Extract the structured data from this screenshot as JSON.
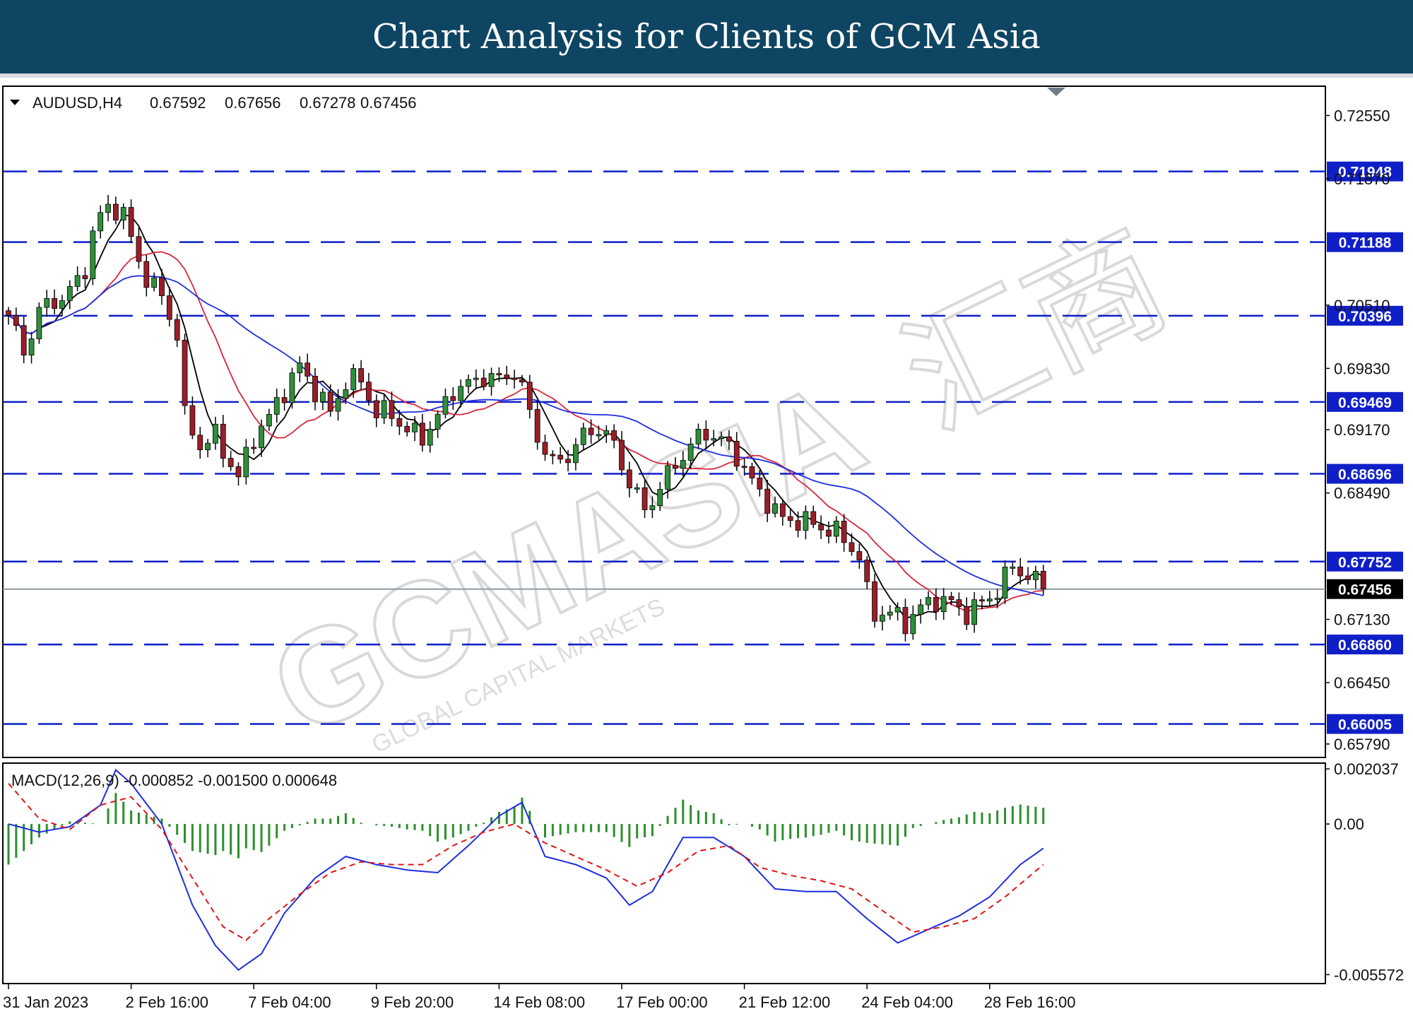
{
  "header": {
    "title": "Chart Analysis for Clients of GCM Asia"
  },
  "watermark": {
    "logo_text": "GCMASIA",
    "sub_text": "GLOBAL CAPITAL MARKETS",
    "logo_cn": "汇商"
  },
  "colors": {
    "level": "#0f1fc8",
    "bull": "#2f8f3a",
    "bear": "#9a1e28",
    "ma_fast": "#000000",
    "ma_mid": "#d9273c",
    "ma_slow": "#1e2ee0",
    "macd": "#1e2ee0",
    "signal": "#e11414",
    "hist": "#2c8f2c",
    "current": "#000000"
  },
  "chart_data": [
    {
      "type": "candlestick",
      "symbol_label": "AUDUSD,H4",
      "ohlc_label": [
        "0.67592",
        "0.67656",
        "0.67278",
        "0.67456"
      ],
      "ylim": [
        0.6566,
        0.7285
      ],
      "y_ticks": [
        "0.72550",
        "0.71870",
        "0.70510",
        "0.69830",
        "0.69170",
        "0.68490",
        "0.67130",
        "0.66450",
        "0.65790"
      ],
      "levels": [
        "0.71948",
        "0.71188",
        "0.70396",
        "0.69469",
        "0.68696",
        "0.67752",
        "0.66860",
        "0.66005"
      ],
      "current_price": "0.67456",
      "x_ticks": [
        "31 Jan 2023",
        "2 Feb 16:00",
        "7 Feb 04:00",
        "9 Feb 20:00",
        "14 Feb 08:00",
        "17 Feb 00:00",
        "21 Feb 12:00",
        "24 Feb 04:00",
        "28 Feb 16:00"
      ],
      "x_tick_index": [
        0,
        16,
        32,
        48,
        64,
        80,
        96,
        112,
        128
      ],
      "anchors": [
        [
          0,
          0.704
        ],
        [
          2,
          0.7
        ],
        [
          4,
          0.7045
        ],
        [
          6,
          0.7055
        ],
        [
          8,
          0.7065
        ],
        [
          10,
          0.709
        ],
        [
          11,
          0.713
        ],
        [
          13,
          0.7158
        ],
        [
          15,
          0.715
        ],
        [
          16,
          0.712
        ],
        [
          18,
          0.708
        ],
        [
          20,
          0.706
        ],
        [
          22,
          0.702
        ],
        [
          23,
          0.693
        ],
        [
          25,
          0.69
        ],
        [
          27,
          0.691
        ],
        [
          29,
          0.688
        ],
        [
          30,
          0.6865
        ],
        [
          32,
          0.691
        ],
        [
          34,
          0.693
        ],
        [
          36,
          0.696
        ],
        [
          38,
          0.6985
        ],
        [
          40,
          0.696
        ],
        [
          42,
          0.6935
        ],
        [
          44,
          0.697
        ],
        [
          46,
          0.697
        ],
        [
          48,
          0.6935
        ],
        [
          50,
          0.6935
        ],
        [
          52,
          0.6915
        ],
        [
          54,
          0.691
        ],
        [
          56,
          0.693
        ],
        [
          58,
          0.696
        ],
        [
          60,
          0.6965
        ],
        [
          62,
          0.6975
        ],
        [
          64,
          0.697
        ],
        [
          66,
          0.698
        ],
        [
          67,
          0.696
        ],
        [
          69,
          0.691
        ],
        [
          71,
          0.688
        ],
        [
          73,
          0.689
        ],
        [
          75,
          0.691
        ],
        [
          77,
          0.692
        ],
        [
          79,
          0.69
        ],
        [
          81,
          0.686
        ],
        [
          83,
          0.683
        ],
        [
          85,
          0.6855
        ],
        [
          87,
          0.688
        ],
        [
          89,
          0.69
        ],
        [
          91,
          0.6915
        ],
        [
          93,
          0.6905
        ],
        [
          95,
          0.689
        ],
        [
          97,
          0.686
        ],
        [
          99,
          0.684
        ],
        [
          101,
          0.682
        ],
        [
          103,
          0.682
        ],
        [
          105,
          0.6815
        ],
        [
          107,
          0.681
        ],
        [
          109,
          0.68
        ],
        [
          111,
          0.678
        ],
        [
          112,
          0.674
        ],
        [
          113,
          0.672
        ],
        [
          115,
          0.672
        ],
        [
          117,
          0.671
        ],
        [
          119,
          0.6725
        ],
        [
          121,
          0.6735
        ],
        [
          123,
          0.673
        ],
        [
          125,
          0.672
        ],
        [
          127,
          0.673
        ],
        [
          129,
          0.6745
        ],
        [
          131,
          0.677
        ],
        [
          133,
          0.676
        ],
        [
          135,
          0.6745
        ]
      ],
      "last_close": 0.67456,
      "moving_averages": [
        {
          "period": 5
        },
        {
          "period": 13
        },
        {
          "period": 26
        }
      ]
    },
    {
      "type": "macd",
      "label": "MACD(12,26,9) -0.000852 -0.001500 0.000648",
      "ylim": [
        -0.00585,
        0.0022
      ],
      "y_ticks": [
        "0.002037",
        "0.00",
        "-0.005572"
      ],
      "macd_anchors": [
        [
          0,
          0.0
        ],
        [
          4,
          -0.0003
        ],
        [
          8,
          -0.0001
        ],
        [
          12,
          0.0007
        ],
        [
          14,
          0.002
        ],
        [
          16,
          0.0015
        ],
        [
          20,
          0.0
        ],
        [
          24,
          -0.003
        ],
        [
          27,
          -0.0045
        ],
        [
          30,
          -0.0054
        ],
        [
          33,
          -0.0048
        ],
        [
          36,
          -0.0033
        ],
        [
          40,
          -0.002
        ],
        [
          44,
          -0.0012
        ],
        [
          48,
          -0.0015
        ],
        [
          52,
          -0.0017
        ],
        [
          56,
          -0.0018
        ],
        [
          60,
          -0.0008
        ],
        [
          64,
          0.0003
        ],
        [
          67,
          0.0008
        ],
        [
          70,
          -0.0012
        ],
        [
          74,
          -0.0015
        ],
        [
          78,
          -0.002
        ],
        [
          81,
          -0.003
        ],
        [
          84,
          -0.0025
        ],
        [
          88,
          -0.0005
        ],
        [
          92,
          -0.0005
        ],
        [
          96,
          -0.0012
        ],
        [
          100,
          -0.0024
        ],
        [
          104,
          -0.0025
        ],
        [
          108,
          -0.0025
        ],
        [
          112,
          -0.0035
        ],
        [
          116,
          -0.0044
        ],
        [
          120,
          -0.0039
        ],
        [
          124,
          -0.0034
        ],
        [
          128,
          -0.0027
        ],
        [
          132,
          -0.0015
        ],
        [
          135,
          -0.0009
        ]
      ],
      "signal_anchors": [
        [
          0,
          0.0015
        ],
        [
          4,
          0.0002
        ],
        [
          8,
          -0.0002
        ],
        [
          12,
          0.0007
        ],
        [
          16,
          0.001
        ],
        [
          20,
          -0.0002
        ],
        [
          24,
          -0.002
        ],
        [
          28,
          -0.0038
        ],
        [
          31,
          -0.0043
        ],
        [
          34,
          -0.0035
        ],
        [
          38,
          -0.0026
        ],
        [
          42,
          -0.0018
        ],
        [
          46,
          -0.0014
        ],
        [
          50,
          -0.0015
        ],
        [
          54,
          -0.0015
        ],
        [
          58,
          -0.0008
        ],
        [
          62,
          -0.0003
        ],
        [
          66,
          0.0
        ],
        [
          70,
          -0.0007
        ],
        [
          74,
          -0.0012
        ],
        [
          78,
          -0.0017
        ],
        [
          82,
          -0.0023
        ],
        [
          86,
          -0.0018
        ],
        [
          90,
          -0.001
        ],
        [
          94,
          -0.0008
        ],
        [
          98,
          -0.0016
        ],
        [
          102,
          -0.0019
        ],
        [
          106,
          -0.0021
        ],
        [
          110,
          -0.0024
        ],
        [
          114,
          -0.0032
        ],
        [
          118,
          -0.004
        ],
        [
          122,
          -0.0038
        ],
        [
          126,
          -0.0035
        ],
        [
          130,
          -0.0027
        ],
        [
          135,
          -0.0015
        ]
      ]
    }
  ]
}
